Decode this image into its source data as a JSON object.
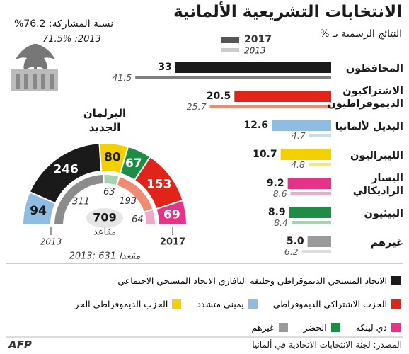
{
  "title": "الانتخابات التشريعية الألمانية",
  "participation": {
    "label": "نسبة المشاركة: 76.2%",
    "previous": "2013: 71.5%"
  },
  "chart_data": [
    {
      "type": "bar",
      "orientation": "horizontal",
      "subtitle": "النتائج الرسمية بـ %",
      "categories": [
        "المحافظون",
        "الاشتراكيون الديموقراطيون",
        "البديل لألمانيا",
        "الليبراليون",
        "اليسار الراديكالي",
        "البيئيون",
        "غيرهم"
      ],
      "series": [
        {
          "name": "2017",
          "color": "#555555",
          "colors": [
            "#1a1a1a",
            "#e2231a",
            "#8fbce0",
            "#f5d000",
            "#e6338a",
            "#1e8c45",
            "#9a9a9a"
          ],
          "values": [
            33,
            20.5,
            12.6,
            10.7,
            9.2,
            8.9,
            5.0
          ],
          "value_labels": [
            "33",
            "20.5",
            "12.6",
            "10.7",
            "9.2",
            "8.9",
            "5.0"
          ]
        },
        {
          "name": "2013",
          "color": "#cccccc",
          "colors": [
            "#7f7f7f",
            "#f08a72",
            "#c9dcee",
            "#f2e39a",
            "#f2a6c8",
            "#a9d2b0",
            "#dddddd"
          ],
          "values": [
            41.5,
            25.7,
            4.7,
            4.8,
            8.6,
            8.4,
            6.2
          ]
        }
      ]
    },
    {
      "type": "parliament",
      "title": "البرلمان الجديد",
      "total": 709,
      "total_label": "مقاعد",
      "note": "2013: 631 مقعدا",
      "series": [
        {
          "name": "2017",
          "colors": [
            "#8fbce0",
            "#1a1a1a",
            "#f5d000",
            "#1e8c45",
            "#e2231a",
            "#e6338a"
          ],
          "values": [
            94,
            246,
            80,
            67,
            153,
            69
          ]
        },
        {
          "name": "2013",
          "colors": [
            "#8c8c8c",
            "#a9d2b0",
            "#f08a72",
            "#f2a6c8"
          ],
          "values": [
            311,
            63,
            193,
            64
          ]
        }
      ]
    }
  ],
  "legend": [
    {
      "label": "الاتحاد المسيحي الديموقراطي وحليفه البافاري الاتحاد المسيحي الاجتماعي",
      "color": "#1a1a1a"
    },
    {
      "label": "الحزب الاشتراكي الديموقراطي",
      "color": "#e2231a"
    },
    {
      "label": "يميني متشدد",
      "color": "#8fbce0"
    },
    {
      "label": "الحزب الديموقراطي الحر",
      "color": "#f5d000"
    },
    {
      "label": "دي لينكه",
      "color": "#e6338a"
    },
    {
      "label": "الخضر",
      "color": "#1e8c45"
    },
    {
      "label": "غيرهم",
      "color": "#9a9a9a"
    }
  ],
  "footer": {
    "source": "المصدر: لجنة الانتخابات الاتحادية في ألمانيا",
    "logo": "AFP"
  }
}
